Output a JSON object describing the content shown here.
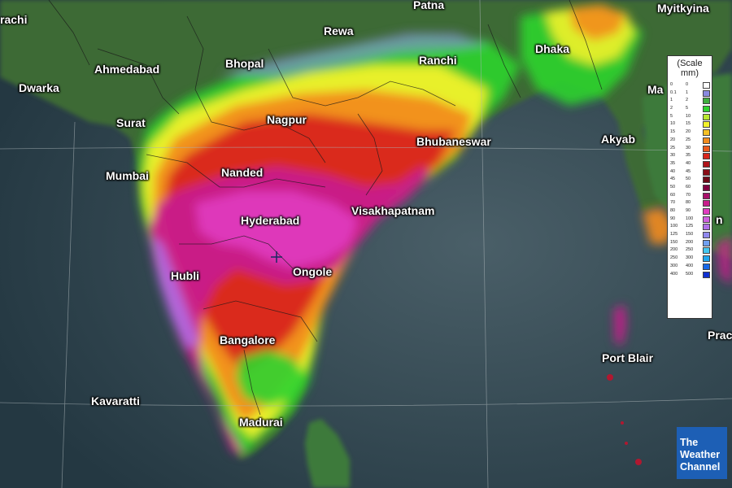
{
  "map": {
    "cities": [
      {
        "id": "karachi",
        "label": "rachi"
      },
      {
        "id": "patna",
        "label": "Patna"
      },
      {
        "id": "myitkyina",
        "label": "Myitkyina"
      },
      {
        "id": "rewa",
        "label": "Rewa"
      },
      {
        "id": "ahmedabad",
        "label": "Ahmedabad"
      },
      {
        "id": "bhopal",
        "label": "Bhopal"
      },
      {
        "id": "ranchi",
        "label": "Ranchi"
      },
      {
        "id": "dhaka",
        "label": "Dhaka"
      },
      {
        "id": "dwarka",
        "label": "Dwarka"
      },
      {
        "id": "mandalay",
        "label": "Ma"
      },
      {
        "id": "surat",
        "label": "Surat"
      },
      {
        "id": "nagpur",
        "label": "Nagpur"
      },
      {
        "id": "akyab",
        "label": "Akyab"
      },
      {
        "id": "bhubaneswar",
        "label": "Bhubaneswar"
      },
      {
        "id": "mumbai",
        "label": "Mumbai"
      },
      {
        "id": "nanded",
        "label": "Nanded"
      },
      {
        "id": "hyderabad",
        "label": "Hyderabad"
      },
      {
        "id": "visakhapatnam",
        "label": "Visakhapatnam"
      },
      {
        "id": "yangon",
        "label": "n"
      },
      {
        "id": "hubli",
        "label": "Hubli"
      },
      {
        "id": "ongole",
        "label": "Ongole"
      },
      {
        "id": "bangalore",
        "label": "Bangalore"
      },
      {
        "id": "pradesh",
        "label": "Prac"
      },
      {
        "id": "port_blair",
        "label": "Port Blair"
      },
      {
        "id": "kavaratti",
        "label": "Kavaratti"
      },
      {
        "id": "madurai",
        "label": "Madurai"
      }
    ]
  },
  "legend": {
    "title": "(Scale mm)",
    "rows": [
      {
        "lo": "0",
        "hi": "0",
        "color": "#ffffff"
      },
      {
        "lo": "0.1",
        "hi": "1",
        "color": "#8a8ae0"
      },
      {
        "lo": "1",
        "hi": "2",
        "color": "#3fae3f"
      },
      {
        "lo": "2",
        "hi": "5",
        "color": "#2fd42f"
      },
      {
        "lo": "5",
        "hi": "10",
        "color": "#b9e82e"
      },
      {
        "lo": "10",
        "hi": "15",
        "color": "#f2f22a"
      },
      {
        "lo": "15",
        "hi": "20",
        "color": "#f5c026"
      },
      {
        "lo": "20",
        "hi": "25",
        "color": "#f28c1e"
      },
      {
        "lo": "25",
        "hi": "30",
        "color": "#ec5a1c"
      },
      {
        "lo": "30",
        "hi": "35",
        "color": "#d8261c"
      },
      {
        "lo": "35",
        "hi": "40",
        "color": "#b0141a"
      },
      {
        "lo": "40",
        "hi": "45",
        "color": "#8a0d16"
      },
      {
        "lo": "45",
        "hi": "50",
        "color": "#6e0a18"
      },
      {
        "lo": "50",
        "hi": "60",
        "color": "#800040"
      },
      {
        "lo": "60",
        "hi": "70",
        "color": "#a8106a"
      },
      {
        "lo": "70",
        "hi": "80",
        "color": "#c81e8c"
      },
      {
        "lo": "80",
        "hi": "90",
        "color": "#e03cc0"
      },
      {
        "lo": "90",
        "hi": "100",
        "color": "#d060e0"
      },
      {
        "lo": "100",
        "hi": "125",
        "color": "#b070e8"
      },
      {
        "lo": "125",
        "hi": "150",
        "color": "#9088ee"
      },
      {
        "lo": "150",
        "hi": "200",
        "color": "#70a0f0"
      },
      {
        "lo": "200",
        "hi": "250",
        "color": "#44c8f0"
      },
      {
        "lo": "250",
        "hi": "300",
        "color": "#20a8f0"
      },
      {
        "lo": "300",
        "hi": "400",
        "color": "#1868e8"
      },
      {
        "lo": "400",
        "hi": "500",
        "color": "#1030d0"
      }
    ]
  },
  "logo": {
    "line1": "The",
    "line2": "Weather",
    "line3": "Channel"
  }
}
